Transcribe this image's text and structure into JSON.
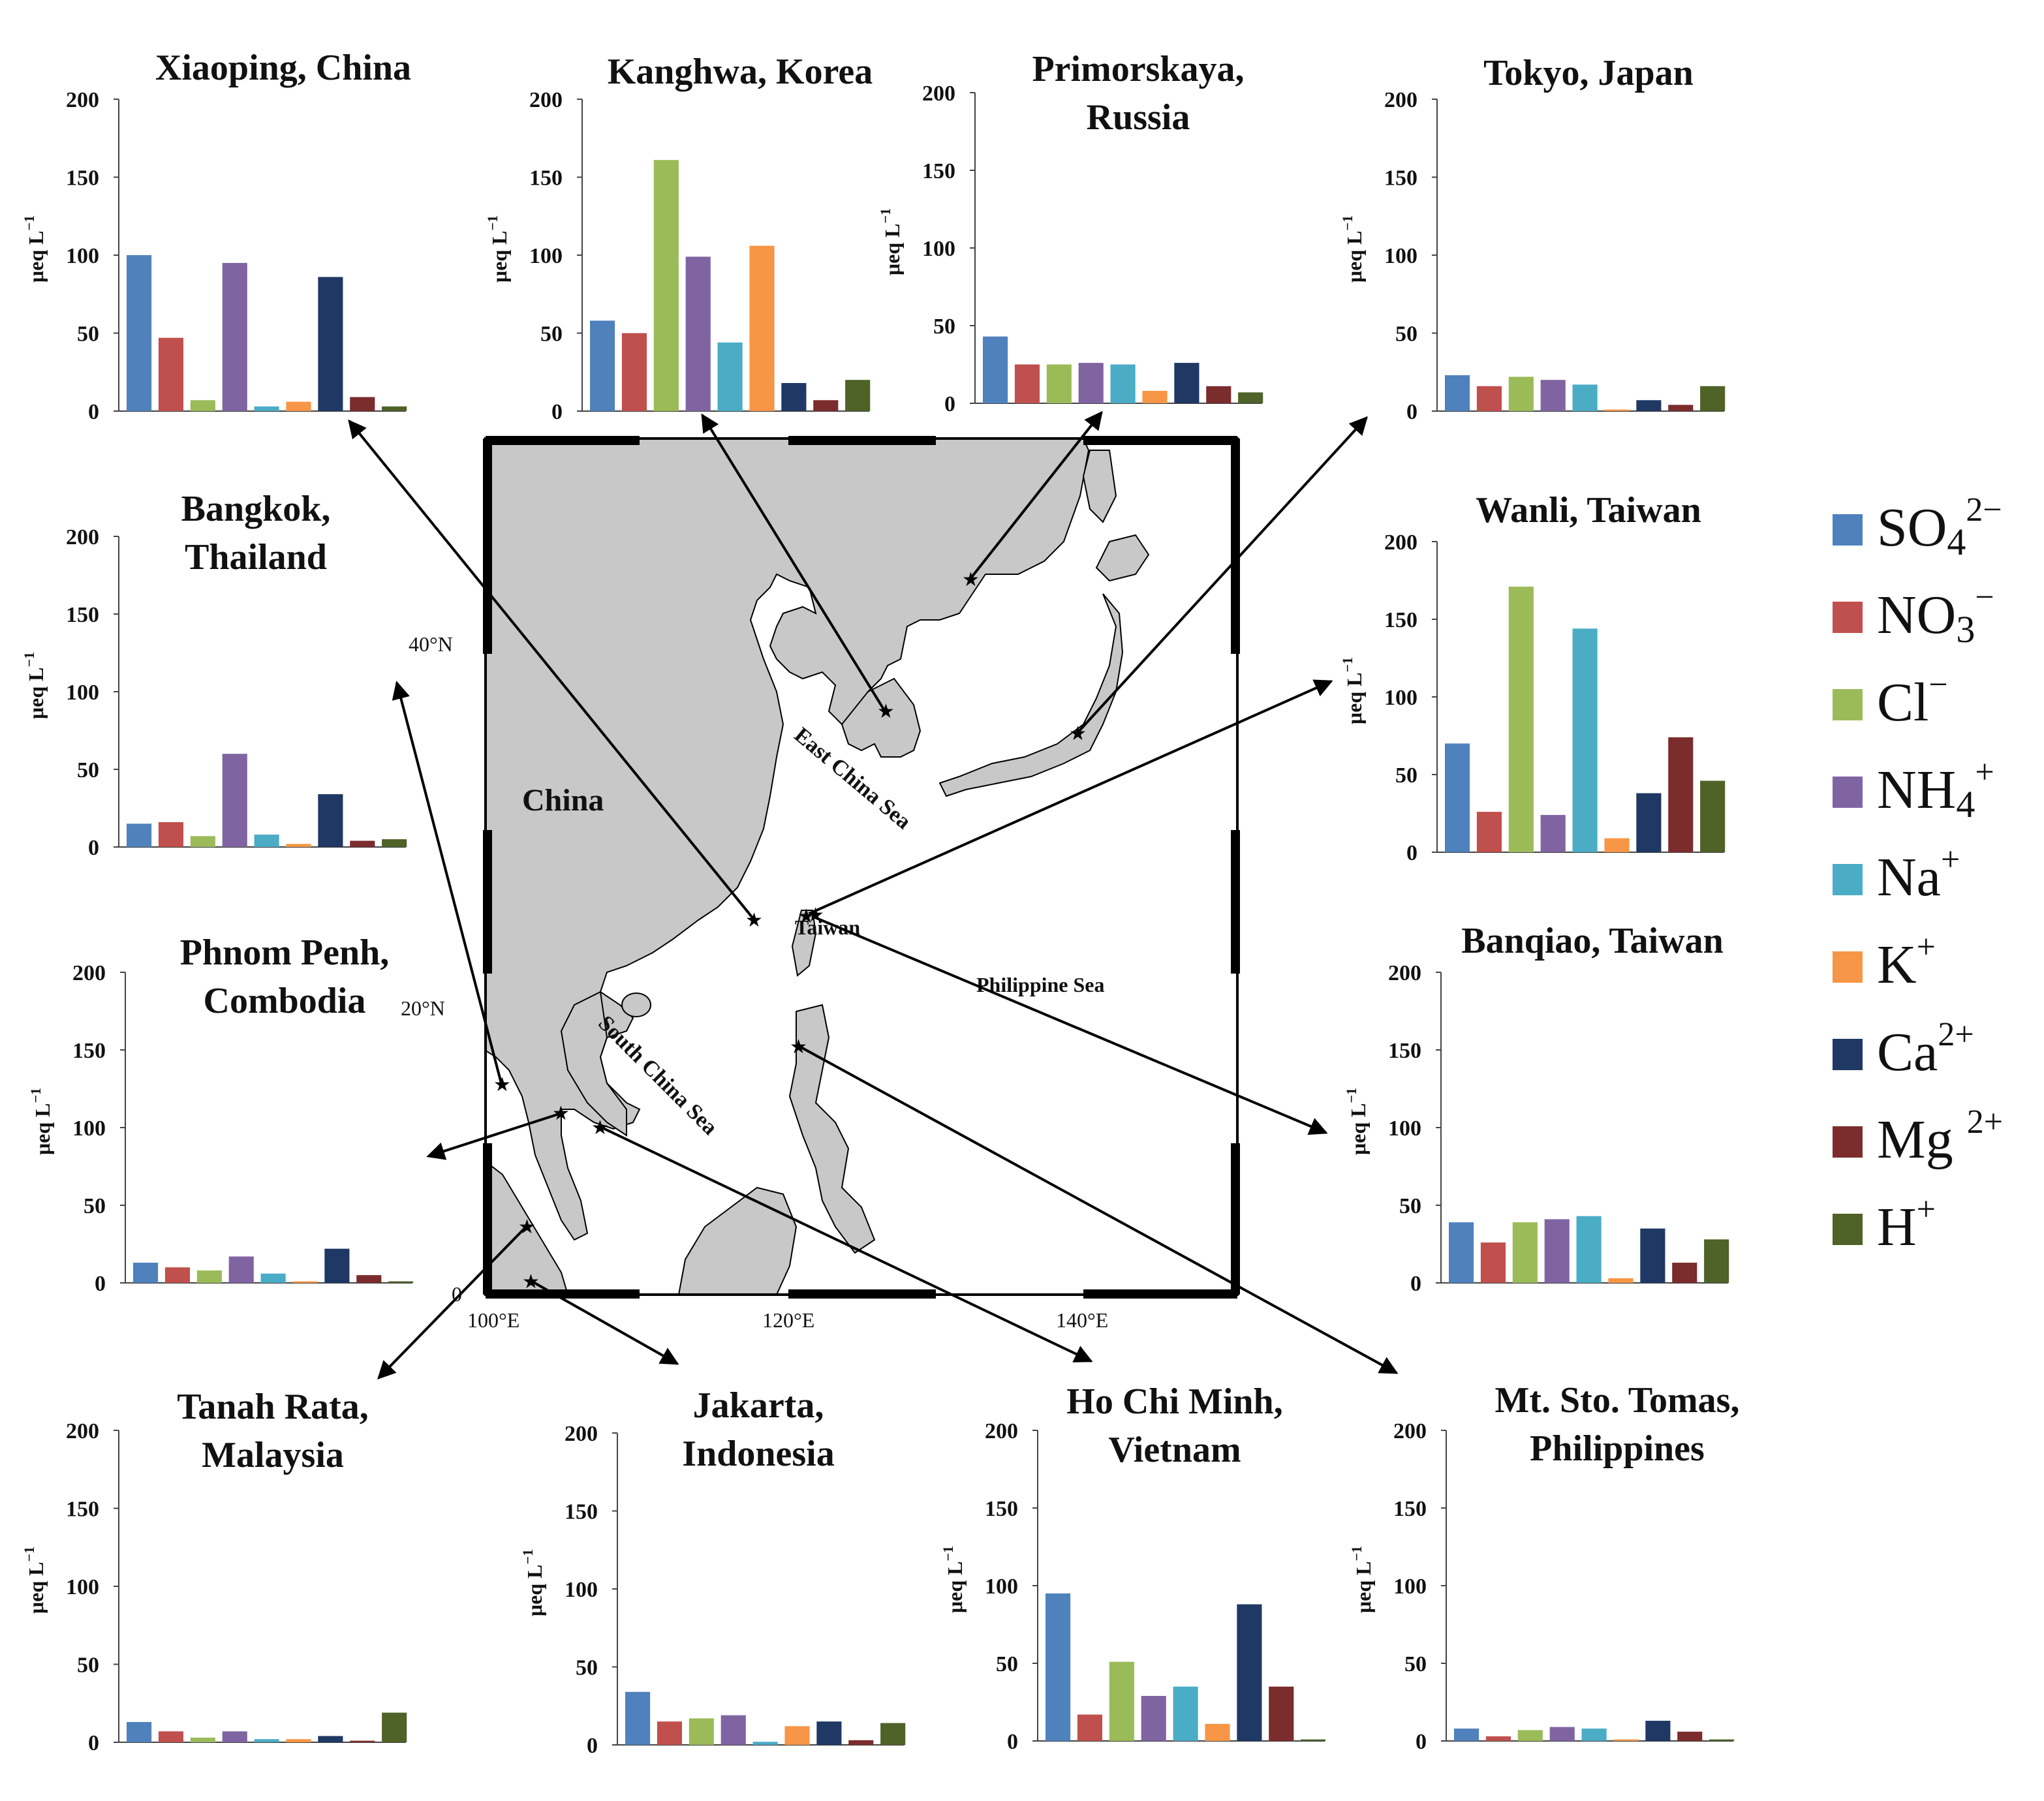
{
  "species": [
    "SO4",
    "NO3",
    "Cl",
    "NH4",
    "Na",
    "K",
    "Ca",
    "Mg",
    "H"
  ],
  "colors": [
    "#4f81bd",
    "#c0504d",
    "#9bbb59",
    "#8064a2",
    "#4bacc6",
    "#f79646",
    "#1f3864",
    "#7b2c2c",
    "#4f6228"
  ],
  "legend": [
    {
      "base": "SO",
      "sub": "4",
      "sup": "2−"
    },
    {
      "base": "NO",
      "sub": "3",
      "sup": "−"
    },
    {
      "base": "Cl",
      "sub": "",
      "sup": "−"
    },
    {
      "base": "NH",
      "sub": "4",
      "sup": "+"
    },
    {
      "base": "Na",
      "sub": "",
      "sup": "+"
    },
    {
      "base": "K",
      "sub": "",
      "sup": "+"
    },
    {
      "base": "Ca",
      "sub": "",
      "sup": "2+"
    },
    {
      "base": "Mg ",
      "sub": "",
      "sup": "2+"
    },
    {
      "base": "H",
      "sub": "",
      "sup": "+"
    }
  ],
  "y_axis_label": "μeq L",
  "y_axis_label_sup": "−1",
  "map": {
    "labels": {
      "china": "China",
      "ecs": "East China Sea",
      "scs": "South China Sea",
      "taiwan": "Taiwan",
      "phil_sea": "Philippine Sea",
      "lat40": "40°N",
      "lat20": "20°N",
      "lat0": "0",
      "lon100": "100°E",
      "lon120": "120°E",
      "lon140": "140°E"
    }
  },
  "chart_data": [
    {
      "type": "bar",
      "title": [
        "Xiaoping, China"
      ],
      "ylim": [
        0,
        200
      ],
      "yticks": [
        0,
        50,
        100,
        150,
        200
      ],
      "values": [
        100,
        47,
        7,
        95,
        3,
        6,
        86,
        9,
        3
      ]
    },
    {
      "type": "bar",
      "title": [
        "Kanghwa, Korea"
      ],
      "ylim": [
        0,
        200
      ],
      "yticks": [
        0,
        50,
        100,
        150,
        200
      ],
      "values": [
        58,
        50,
        161,
        99,
        44,
        106,
        18,
        7,
        20
      ]
    },
    {
      "type": "bar",
      "title": [
        "Primorskaya,",
        "Russia"
      ],
      "ylim": [
        0,
        200
      ],
      "yticks": [
        0,
        50,
        100,
        150,
        200
      ],
      "values": [
        43,
        25,
        25,
        26,
        25,
        8,
        26,
        11,
        7
      ]
    },
    {
      "type": "bar",
      "title": [
        "Tokyo, Japan"
      ],
      "ylim": [
        0,
        200
      ],
      "yticks": [
        0,
        50,
        100,
        150,
        200
      ],
      "values": [
        23,
        16,
        22,
        20,
        17,
        1,
        7,
        4,
        16
      ]
    },
    {
      "type": "bar",
      "title": [
        "Bangkok,",
        "Thailand"
      ],
      "ylim": [
        0,
        200
      ],
      "yticks": [
        0,
        50,
        100,
        150,
        200
      ],
      "values": [
        15,
        16,
        7,
        60,
        8,
        2,
        34,
        4,
        5
      ]
    },
    {
      "type": "bar",
      "title": [
        "Wanli, Taiwan"
      ],
      "ylim": [
        0,
        200
      ],
      "yticks": [
        0,
        50,
        100,
        150,
        200
      ],
      "values": [
        70,
        26,
        171,
        24,
        144,
        9,
        38,
        74,
        46
      ]
    },
    {
      "type": "bar",
      "title": [
        "Phnom Penh,",
        "Combodia"
      ],
      "ylim": [
        0,
        200
      ],
      "yticks": [
        0,
        50,
        100,
        150,
        200
      ],
      "values": [
        13,
        10,
        8,
        17,
        6,
        1,
        22,
        5,
        1
      ]
    },
    {
      "type": "bar",
      "title": [
        "Banqiao, Taiwan"
      ],
      "ylim": [
        0,
        200
      ],
      "yticks": [
        0,
        50,
        100,
        150,
        200
      ],
      "values": [
        39,
        26,
        39,
        41,
        43,
        3,
        35,
        13,
        28
      ]
    },
    {
      "type": "bar",
      "title": [
        "Tanah Rata,",
        "Malaysia"
      ],
      "ylim": [
        0,
        200
      ],
      "yticks": [
        0,
        50,
        100,
        150,
        200
      ],
      "values": [
        13,
        7,
        3,
        7,
        2,
        2,
        4,
        1,
        19
      ]
    },
    {
      "type": "bar",
      "title": [
        "Jakarta,",
        "Indonesia"
      ],
      "ylim": [
        0,
        200
      ],
      "yticks": [
        0,
        50,
        100,
        150,
        200
      ],
      "values": [
        34,
        15,
        17,
        19,
        2,
        12,
        15,
        3,
        14
      ]
    },
    {
      "type": "bar",
      "title": [
        "Ho Chi Minh,",
        "Vietnam"
      ],
      "ylim": [
        0,
        200
      ],
      "yticks": [
        0,
        50,
        100,
        150,
        200
      ],
      "values": [
        95,
        17,
        51,
        29,
        35,
        11,
        88,
        35,
        1
      ]
    },
    {
      "type": "bar",
      "title": [
        "Mt. Sto. Tomas,",
        "Philippines"
      ],
      "ylim": [
        0,
        200
      ],
      "yticks": [
        0,
        50,
        100,
        150,
        200
      ],
      "values": [
        8,
        3,
        7,
        9,
        8,
        1,
        13,
        6,
        1
      ]
    }
  ]
}
